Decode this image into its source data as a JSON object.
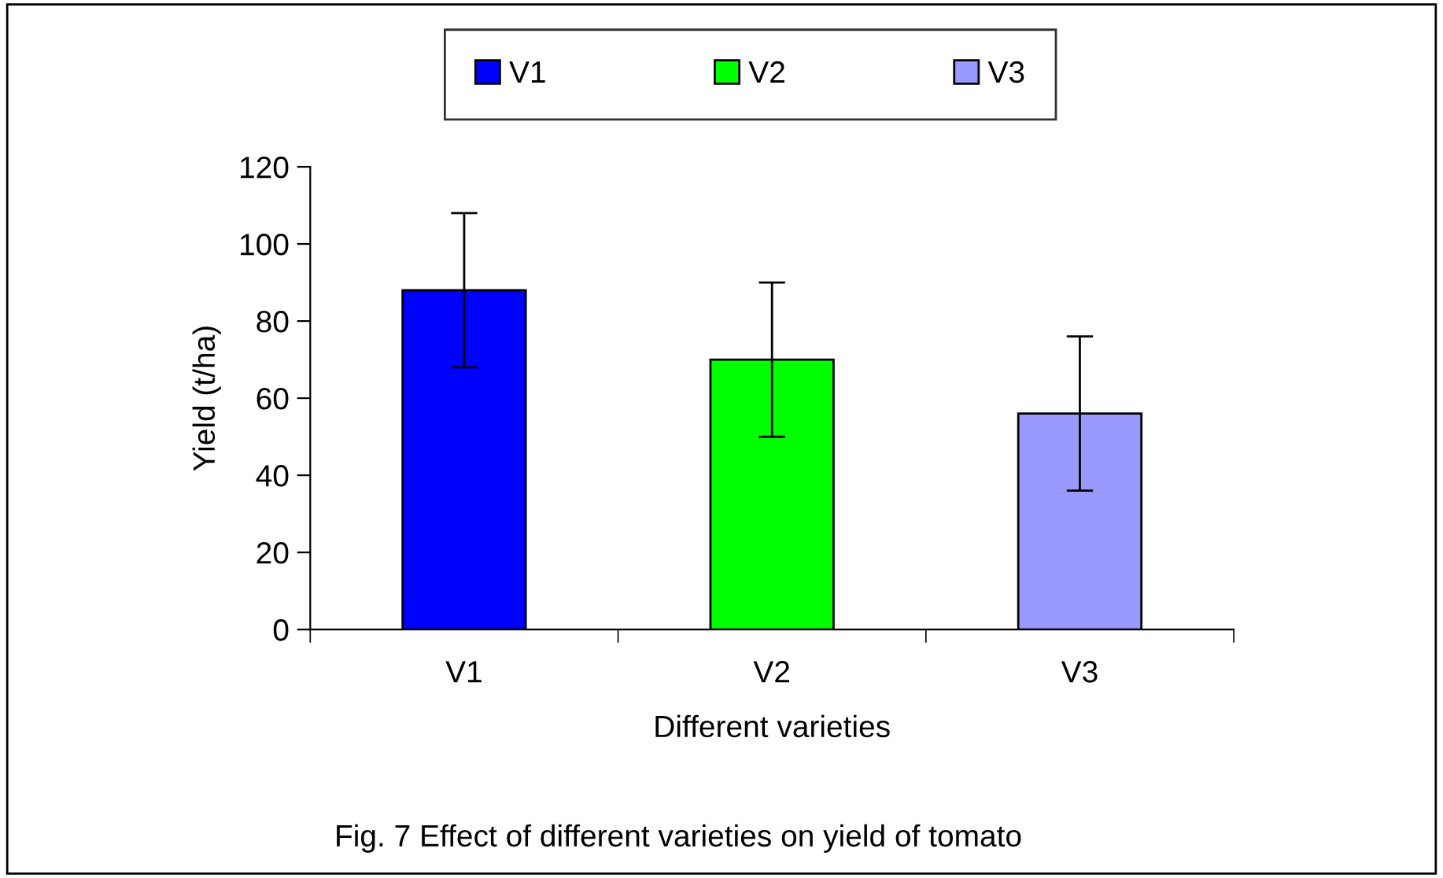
{
  "chart_data": {
    "type": "bar",
    "categories": [
      "V1",
      "V2",
      "V3"
    ],
    "series": [
      {
        "name": "V1",
        "color": "#0000ff",
        "values": [
          88,
          null,
          null
        ],
        "errors": [
          20,
          null,
          null
        ]
      },
      {
        "name": "V2",
        "color": "#00ff00",
        "values": [
          null,
          70,
          null
        ],
        "errors": [
          null,
          20,
          null
        ]
      },
      {
        "name": "V3",
        "color": "#9999ff",
        "values": [
          null,
          null,
          56
        ],
        "errors": [
          null,
          null,
          20
        ]
      }
    ],
    "xlabel": "Different varieties",
    "ylabel": "Yield (t/ha)",
    "ylim": [
      0,
      120
    ],
    "yticks": [
      0,
      20,
      40,
      60,
      80,
      100,
      120
    ],
    "legend": "top",
    "grid": false,
    "annotations": [
      "Fig. 7 Effect of different varieties on yield of tomato"
    ]
  }
}
